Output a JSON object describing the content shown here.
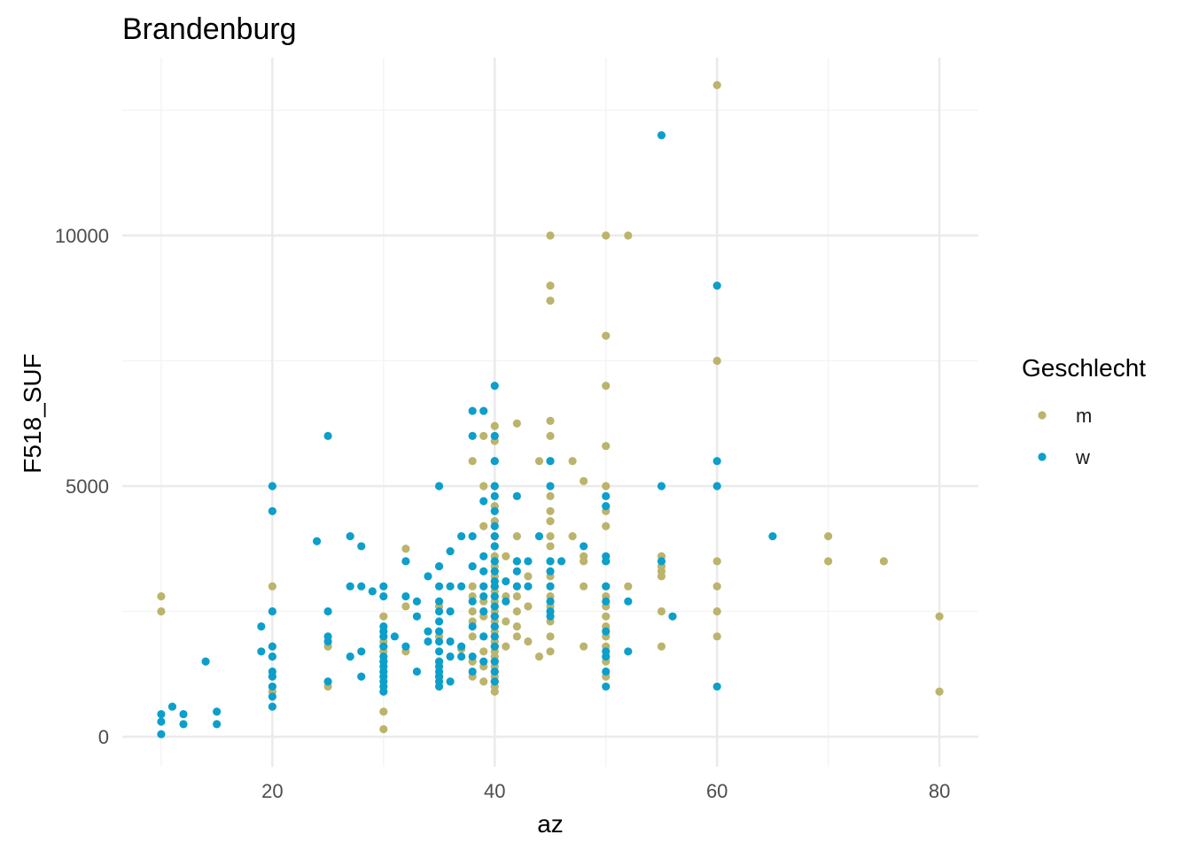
{
  "chart_data": {
    "type": "scatter",
    "title": "Brandenburg",
    "xlabel": "az",
    "ylabel": "F518_SUF",
    "xlim": [
      6.5,
      83.5
    ],
    "ylim": [
      -600,
      13550
    ],
    "x_ticks": [
      20,
      40,
      60,
      80
    ],
    "y_ticks": [
      0,
      5000,
      10000
    ],
    "grid": true,
    "legend": {
      "title": "Geschlecht",
      "placement": "right"
    },
    "colors": {
      "m": "#bcb46c",
      "w": "#0d9fcb"
    },
    "series": [
      {
        "name": "m",
        "color": "#bcb46c",
        "points": [
          [
            10,
            2800
          ],
          [
            10,
            2500
          ],
          [
            20,
            3000
          ],
          [
            20,
            1000
          ],
          [
            20,
            900
          ],
          [
            25,
            1800
          ],
          [
            25,
            1000
          ],
          [
            30,
            2400
          ],
          [
            30,
            2000
          ],
          [
            30,
            1900
          ],
          [
            30,
            1700
          ],
          [
            30,
            1500
          ],
          [
            30,
            1300
          ],
          [
            30,
            1000
          ],
          [
            30,
            500
          ],
          [
            30,
            150
          ],
          [
            32,
            3750
          ],
          [
            32,
            2600
          ],
          [
            32,
            1700
          ],
          [
            35,
            2600
          ],
          [
            35,
            2000
          ],
          [
            35,
            1500
          ],
          [
            35,
            1200
          ],
          [
            37,
            1750
          ],
          [
            38,
            5500
          ],
          [
            38,
            3000
          ],
          [
            38,
            2800
          ],
          [
            38,
            2500
          ],
          [
            38,
            2300
          ],
          [
            38,
            2000
          ],
          [
            38,
            1500
          ],
          [
            38,
            1200
          ],
          [
            39,
            6000
          ],
          [
            39,
            5000
          ],
          [
            39,
            4200
          ],
          [
            39,
            3000
          ],
          [
            39,
            2700
          ],
          [
            39,
            2400
          ],
          [
            39,
            2000
          ],
          [
            39,
            1700
          ],
          [
            39,
            1400
          ],
          [
            39,
            1100
          ],
          [
            40,
            6200
          ],
          [
            40,
            5900
          ],
          [
            40,
            5500
          ],
          [
            40,
            5000
          ],
          [
            40,
            4600
          ],
          [
            40,
            4300
          ],
          [
            40,
            4000
          ],
          [
            40,
            3800
          ],
          [
            40,
            3600
          ],
          [
            40,
            3400
          ],
          [
            40,
            3200
          ],
          [
            40,
            3000
          ],
          [
            40,
            2900
          ],
          [
            40,
            2800
          ],
          [
            40,
            2700
          ],
          [
            40,
            2600
          ],
          [
            40,
            2500
          ],
          [
            40,
            2400
          ],
          [
            40,
            2300
          ],
          [
            40,
            2200
          ],
          [
            40,
            2100
          ],
          [
            40,
            2000
          ],
          [
            40,
            1900
          ],
          [
            40,
            1800
          ],
          [
            40,
            1700
          ],
          [
            40,
            1600
          ],
          [
            40,
            1500
          ],
          [
            40,
            1400
          ],
          [
            40,
            1300
          ],
          [
            40,
            1200
          ],
          [
            40,
            1100
          ],
          [
            40,
            1000
          ],
          [
            40,
            900
          ],
          [
            41,
            3600
          ],
          [
            41,
            2800
          ],
          [
            41,
            2300
          ],
          [
            41,
            1800
          ],
          [
            42,
            6250
          ],
          [
            42,
            4000
          ],
          [
            42,
            3500
          ],
          [
            42,
            3000
          ],
          [
            42,
            2800
          ],
          [
            42,
            2500
          ],
          [
            42,
            2200
          ],
          [
            42,
            2000
          ],
          [
            43,
            3200
          ],
          [
            43,
            2600
          ],
          [
            43,
            1900
          ],
          [
            44,
            5500
          ],
          [
            44,
            1600
          ],
          [
            45,
            10000
          ],
          [
            45,
            9000
          ],
          [
            45,
            8700
          ],
          [
            45,
            6300
          ],
          [
            45,
            6000
          ],
          [
            45,
            5500
          ],
          [
            45,
            4800
          ],
          [
            45,
            4500
          ],
          [
            45,
            4300
          ],
          [
            45,
            4000
          ],
          [
            45,
            3800
          ],
          [
            45,
            3500
          ],
          [
            45,
            3200
          ],
          [
            45,
            3000
          ],
          [
            45,
            2800
          ],
          [
            45,
            2600
          ],
          [
            45,
            2500
          ],
          [
            45,
            2300
          ],
          [
            45,
            2000
          ],
          [
            45,
            1700
          ],
          [
            47,
            5500
          ],
          [
            47,
            4000
          ],
          [
            48,
            5100
          ],
          [
            48,
            3600
          ],
          [
            48,
            3500
          ],
          [
            48,
            3000
          ],
          [
            48,
            1800
          ],
          [
            50,
            10000
          ],
          [
            50,
            8000
          ],
          [
            50,
            7000
          ],
          [
            50,
            5800
          ],
          [
            50,
            5000
          ],
          [
            50,
            4500
          ],
          [
            50,
            4200
          ],
          [
            50,
            3500
          ],
          [
            50,
            3000
          ],
          [
            50,
            2800
          ],
          [
            50,
            2600
          ],
          [
            50,
            2400
          ],
          [
            50,
            2200
          ],
          [
            50,
            2000
          ],
          [
            50,
            1800
          ],
          [
            50,
            1600
          ],
          [
            50,
            1500
          ],
          [
            50,
            1200
          ],
          [
            52,
            10000
          ],
          [
            52,
            3000
          ],
          [
            55,
            3600
          ],
          [
            55,
            3400
          ],
          [
            55,
            3300
          ],
          [
            55,
            3200
          ],
          [
            55,
            2500
          ],
          [
            55,
            1800
          ],
          [
            60,
            13000
          ],
          [
            60,
            7500
          ],
          [
            60,
            3500
          ],
          [
            60,
            3000
          ],
          [
            60,
            2500
          ],
          [
            60,
            2000
          ],
          [
            70,
            4000
          ],
          [
            70,
            3500
          ],
          [
            75,
            3500
          ],
          [
            80,
            2400
          ],
          [
            80,
            900
          ]
        ]
      },
      {
        "name": "w",
        "color": "#0d9fcb",
        "points": [
          [
            10,
            450
          ],
          [
            10,
            300
          ],
          [
            10,
            50
          ],
          [
            11,
            600
          ],
          [
            12,
            450
          ],
          [
            12,
            250
          ],
          [
            14,
            1500
          ],
          [
            15,
            500
          ],
          [
            15,
            250
          ],
          [
            19,
            2200
          ],
          [
            19,
            1700
          ],
          [
            20,
            5000
          ],
          [
            20,
            4500
          ],
          [
            20,
            2500
          ],
          [
            20,
            1800
          ],
          [
            20,
            1600
          ],
          [
            20,
            1300
          ],
          [
            20,
            1200
          ],
          [
            20,
            1000
          ],
          [
            20,
            800
          ],
          [
            20,
            600
          ],
          [
            24,
            3900
          ],
          [
            25,
            6000
          ],
          [
            25,
            2500
          ],
          [
            25,
            2000
          ],
          [
            25,
            1900
          ],
          [
            25,
            1100
          ],
          [
            27,
            4000
          ],
          [
            27,
            3000
          ],
          [
            27,
            1600
          ],
          [
            28,
            3800
          ],
          [
            28,
            3000
          ],
          [
            28,
            1700
          ],
          [
            28,
            1200
          ],
          [
            29,
            2900
          ],
          [
            30,
            3000
          ],
          [
            30,
            2800
          ],
          [
            30,
            2200
          ],
          [
            30,
            2100
          ],
          [
            30,
            2000
          ],
          [
            30,
            1800
          ],
          [
            30,
            1600
          ],
          [
            30,
            1500
          ],
          [
            30,
            1400
          ],
          [
            30,
            1300
          ],
          [
            30,
            1200
          ],
          [
            30,
            1100
          ],
          [
            30,
            1000
          ],
          [
            30,
            900
          ],
          [
            31,
            2000
          ],
          [
            32,
            3500
          ],
          [
            32,
            2800
          ],
          [
            32,
            1800
          ],
          [
            33,
            2700
          ],
          [
            33,
            2400
          ],
          [
            33,
            1300
          ],
          [
            34,
            3200
          ],
          [
            34,
            2100
          ],
          [
            34,
            1900
          ],
          [
            35,
            5000
          ],
          [
            35,
            3400
          ],
          [
            35,
            3000
          ],
          [
            35,
            2700
          ],
          [
            35,
            2500
          ],
          [
            35,
            2300
          ],
          [
            35,
            2100
          ],
          [
            35,
            1900
          ],
          [
            35,
            1700
          ],
          [
            35,
            1500
          ],
          [
            35,
            1400
          ],
          [
            35,
            1300
          ],
          [
            35,
            1200
          ],
          [
            35,
            1100
          ],
          [
            35,
            1000
          ],
          [
            36,
            3700
          ],
          [
            36,
            3000
          ],
          [
            36,
            2500
          ],
          [
            36,
            1900
          ],
          [
            36,
            1600
          ],
          [
            36,
            1100
          ],
          [
            37,
            4000
          ],
          [
            37,
            3000
          ],
          [
            37,
            1800
          ],
          [
            37,
            1600
          ],
          [
            38,
            6500
          ],
          [
            38,
            6000
          ],
          [
            38,
            4000
          ],
          [
            38,
            3400
          ],
          [
            38,
            2700
          ],
          [
            38,
            2200
          ],
          [
            38,
            1600
          ],
          [
            38,
            1300
          ],
          [
            39,
            6500
          ],
          [
            39,
            4700
          ],
          [
            39,
            3600
          ],
          [
            39,
            3300
          ],
          [
            39,
            3000
          ],
          [
            39,
            2800
          ],
          [
            39,
            2500
          ],
          [
            39,
            2000
          ],
          [
            39,
            1500
          ],
          [
            40,
            7000
          ],
          [
            40,
            6000
          ],
          [
            40,
            5500
          ],
          [
            40,
            5000
          ],
          [
            40,
            4800
          ],
          [
            40,
            4500
          ],
          [
            40,
            4200
          ],
          [
            40,
            4000
          ],
          [
            40,
            3800
          ],
          [
            40,
            3500
          ],
          [
            40,
            3300
          ],
          [
            40,
            3100
          ],
          [
            40,
            3000
          ],
          [
            40,
            2800
          ],
          [
            40,
            2600
          ],
          [
            40,
            2400
          ],
          [
            40,
            2200
          ],
          [
            40,
            2000
          ],
          [
            40,
            1800
          ],
          [
            40,
            1500
          ],
          [
            40,
            1300
          ],
          [
            40,
            1100
          ],
          [
            41,
            3100
          ],
          [
            41,
            2700
          ],
          [
            42,
            4800
          ],
          [
            42,
            3500
          ],
          [
            42,
            3300
          ],
          [
            42,
            3000
          ],
          [
            43,
            3500
          ],
          [
            43,
            3000
          ],
          [
            44,
            4000
          ],
          [
            45,
            5500
          ],
          [
            45,
            5000
          ],
          [
            45,
            3500
          ],
          [
            45,
            3300
          ],
          [
            45,
            3000
          ],
          [
            45,
            2700
          ],
          [
            45,
            2500
          ],
          [
            45,
            2400
          ],
          [
            46,
            3500
          ],
          [
            48,
            3800
          ],
          [
            50,
            4800
          ],
          [
            50,
            4600
          ],
          [
            50,
            3600
          ],
          [
            50,
            3500
          ],
          [
            50,
            3000
          ],
          [
            50,
            2700
          ],
          [
            50,
            2100
          ],
          [
            50,
            1700
          ],
          [
            50,
            1600
          ],
          [
            50,
            1300
          ],
          [
            50,
            1000
          ],
          [
            52,
            2700
          ],
          [
            52,
            1700
          ],
          [
            55,
            12000
          ],
          [
            55,
            5000
          ],
          [
            55,
            3500
          ],
          [
            56,
            2400
          ],
          [
            60,
            9000
          ],
          [
            60,
            5500
          ],
          [
            60,
            5000
          ],
          [
            60,
            1000
          ],
          [
            65,
            4000
          ]
        ]
      }
    ]
  }
}
